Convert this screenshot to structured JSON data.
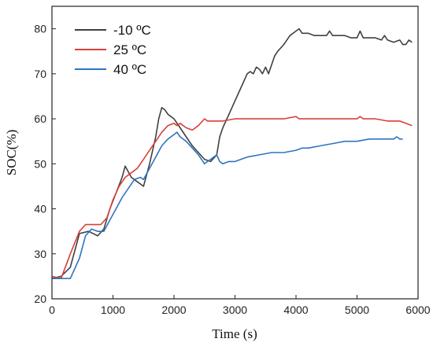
{
  "chart_data": {
    "type": "line",
    "xlabel": "Time (s)",
    "ylabel": "SOC(%)",
    "xlim": [
      0,
      6000
    ],
    "ylim": [
      20,
      85
    ],
    "xticks": [
      0,
      1000,
      2000,
      3000,
      4000,
      5000,
      6000
    ],
    "yticks": [
      20,
      30,
      40,
      50,
      60,
      70,
      80
    ],
    "grid": false,
    "legend_position": "top-left",
    "series": [
      {
        "name": "-10 ºC",
        "color": "#404040",
        "x": [
          0,
          150,
          300,
          450,
          600,
          750,
          850,
          950,
          1050,
          1150,
          1200,
          1300,
          1400,
          1500,
          1600,
          1700,
          1750,
          1800,
          1850,
          1900,
          1950,
          2000,
          2100,
          2200,
          2300,
          2400,
          2500,
          2600,
          2700,
          2750,
          2800,
          2900,
          3000,
          3100,
          3200,
          3250,
          3300,
          3350,
          3400,
          3450,
          3500,
          3550,
          3600,
          3650,
          3700,
          3800,
          3900,
          4000,
          4050,
          4100,
          4200,
          4300,
          4400,
          4500,
          4550,
          4600,
          4700,
          4800,
          4900,
          5000,
          5050,
          5100,
          5200,
          5300,
          5400,
          5450,
          5500,
          5600,
          5700,
          5750,
          5800,
          5850,
          5900
        ],
        "y": [
          24.5,
          25,
          27,
          34.5,
          35,
          34,
          35.5,
          40,
          43.5,
          47,
          49.5,
          47,
          46,
          45,
          50,
          56,
          60,
          62.5,
          62,
          61,
          60.5,
          60,
          58,
          56,
          54,
          52.5,
          51,
          50.5,
          52,
          56,
          58,
          61,
          64,
          67,
          70,
          70.5,
          70,
          71.5,
          71,
          70,
          71.5,
          70,
          72,
          74,
          75,
          76.5,
          78.5,
          79.5,
          80,
          79,
          79,
          78.5,
          78.5,
          78.5,
          79.5,
          78.5,
          78.5,
          78.5,
          78,
          78,
          79.5,
          78,
          78,
          78,
          77.5,
          78.5,
          77.5,
          77,
          77.5,
          76.5,
          76.5,
          77.5,
          77
        ]
      },
      {
        "name": "25 ºC",
        "color": "#d9403a",
        "x": [
          0,
          150,
          300,
          450,
          550,
          650,
          800,
          900,
          1000,
          1100,
          1200,
          1300,
          1400,
          1500,
          1600,
          1700,
          1800,
          1900,
          2000,
          2050,
          2100,
          2200,
          2300,
          2400,
          2500,
          2550,
          2600,
          2700,
          2800,
          3000,
          3200,
          3400,
          3600,
          3800,
          4000,
          4050,
          4100,
          4300,
          4500,
          4700,
          4900,
          5000,
          5050,
          5100,
          5300,
          5500,
          5700,
          5800,
          5900
        ],
        "y": [
          25,
          24.5,
          30,
          35,
          36.5,
          36.5,
          36.5,
          38,
          42,
          45,
          47,
          48,
          49,
          51,
          53,
          55,
          57,
          58.5,
          59,
          58.5,
          59,
          58,
          57.5,
          58.5,
          60,
          59.5,
          59.5,
          59.5,
          59.5,
          60,
          60,
          60,
          60,
          60,
          60.5,
          60,
          60,
          60,
          60,
          60,
          60,
          60,
          60.5,
          60,
          60,
          59.5,
          59.5,
          59,
          58.5
        ]
      },
      {
        "name": "40 ºC",
        "color": "#2f74c0",
        "x": [
          0,
          150,
          300,
          450,
          550,
          650,
          750,
          850,
          950,
          1050,
          1150,
          1250,
          1350,
          1450,
          1500,
          1600,
          1700,
          1800,
          1900,
          2000,
          2050,
          2100,
          2200,
          2300,
          2400,
          2500,
          2550,
          2600,
          2700,
          2750,
          2800,
          2900,
          3000,
          3200,
          3400,
          3600,
          3800,
          4000,
          4100,
          4200,
          4400,
          4600,
          4800,
          5000,
          5200,
          5400,
          5600,
          5650,
          5700,
          5750
        ],
        "y": [
          24.5,
          24.5,
          24.5,
          29,
          34,
          35.5,
          35,
          35,
          37.5,
          40,
          42.5,
          44.5,
          46.5,
          47,
          46.5,
          49,
          51.5,
          54,
          55.5,
          56.5,
          57,
          56,
          55,
          53.5,
          52,
          50,
          50.5,
          51,
          52,
          50.5,
          50,
          50.5,
          50.5,
          51.5,
          52,
          52.5,
          52.5,
          53,
          53.5,
          53.5,
          54,
          54.5,
          55,
          55,
          55.5,
          55.5,
          55.5,
          56,
          55.5,
          55.5
        ]
      }
    ]
  }
}
